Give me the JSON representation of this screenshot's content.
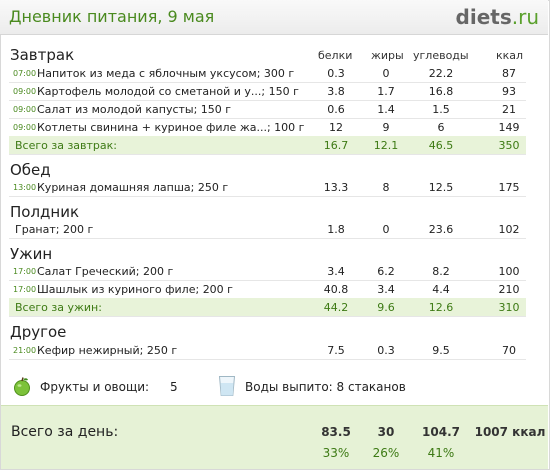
{
  "header": {
    "title": "Дневник питания, 9 мая",
    "logo_main": "diets",
    "logo_tld": ".ru"
  },
  "columns": {
    "protein": "белки",
    "fat": "жиры",
    "carbs": "углеводы",
    "kcal": "ккал"
  },
  "meals": {
    "breakfast": {
      "title": "Завтрак",
      "items": [
        {
          "time": "07:00",
          "name": "Напиток из меда с яблочным уксусом; 300 г",
          "protein": "0.3",
          "fat": "0",
          "carbs": "22.2",
          "kcal": "87"
        },
        {
          "time": "09:00",
          "name": "Картофель молодой со сметаной и у...; 150 г",
          "protein": "3.8",
          "fat": "1.7",
          "carbs": "16.8",
          "kcal": "93"
        },
        {
          "time": "09:00",
          "name": "Салат из молодой капусты; 150 г",
          "protein": "0.6",
          "fat": "1.4",
          "carbs": "1.5",
          "kcal": "21"
        },
        {
          "time": "09:00",
          "name": "Котлеты свинина + куриное филе жа...; 100 г",
          "protein": "12",
          "fat": "9",
          "carbs": "6",
          "kcal": "149"
        }
      ],
      "total": {
        "label": "Всего за завтрак:",
        "protein": "16.7",
        "fat": "12.1",
        "carbs": "46.5",
        "kcal": "350"
      }
    },
    "lunch": {
      "title": "Обед",
      "items": [
        {
          "time": "13:00",
          "name": "Куриная домашняя лапша; 250 г",
          "protein": "13.3",
          "fat": "8",
          "carbs": "12.5",
          "kcal": "175"
        }
      ]
    },
    "snack": {
      "title": "Полдник",
      "items": [
        {
          "time": "",
          "name": "Гранат; 200 г",
          "protein": "1.8",
          "fat": "0",
          "carbs": "23.6",
          "kcal": "102"
        }
      ]
    },
    "dinner": {
      "title": "Ужин",
      "items": [
        {
          "time": "17:00",
          "name": "Салат Греческий; 200 г",
          "protein": "3.4",
          "fat": "6.2",
          "carbs": "8.2",
          "kcal": "100"
        },
        {
          "time": "17:00",
          "name": "Шашлык из куриного филе; 200 г",
          "protein": "40.8",
          "fat": "3.4",
          "carbs": "4.4",
          "kcal": "210"
        }
      ],
      "total": {
        "label": "Всего за ужин:",
        "protein": "44.2",
        "fat": "9.6",
        "carbs": "12.6",
        "kcal": "310"
      }
    },
    "other": {
      "title": "Другое",
      "items": [
        {
          "time": "21:00",
          "name": "Кефир нежирный; 250 г",
          "protein": "7.5",
          "fat": "0.3",
          "carbs": "9.5",
          "kcal": "70"
        }
      ]
    }
  },
  "misc": {
    "fruit_icon": "green-apple-icon",
    "fruit_label": "Фрукты и овощи:",
    "fruit_count": "5",
    "water_icon": "water-glass-icon",
    "water_label": "Воды выпито: 8 стаканов"
  },
  "day_total": {
    "label": "Всего за день:",
    "protein": "83.5",
    "fat": "30",
    "carbs": "104.7",
    "kcal": "1007 ккал",
    "protein_pct": "33%",
    "fat_pct": "26%",
    "carbs_pct": "41%"
  },
  "colors": {
    "accent_green": "#4a8a1f",
    "total_row_bg": "#e8f3d9",
    "day_box_bg": "#e6f2d6"
  }
}
